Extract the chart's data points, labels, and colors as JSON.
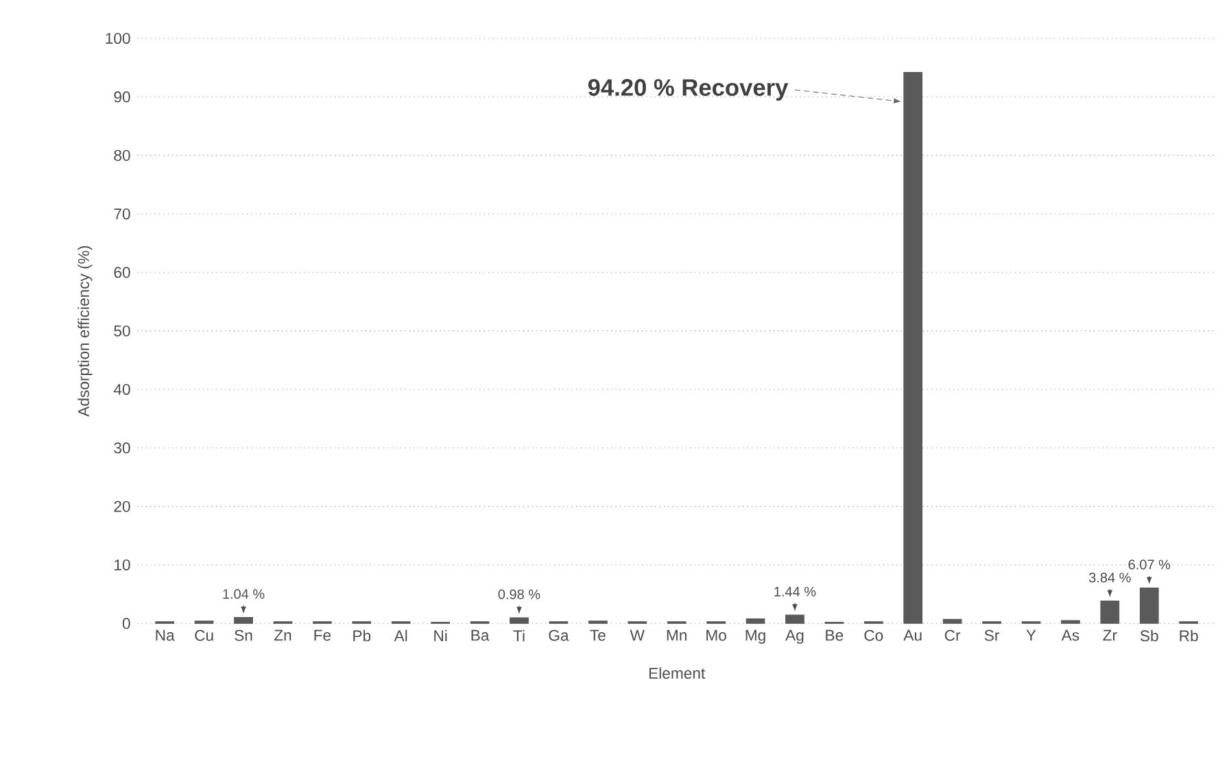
{
  "chart_data": {
    "type": "bar",
    "xlabel": "Element",
    "ylabel": "Adsorption efficiency (%)",
    "categories": [
      "Na",
      "Cu",
      "Sn",
      "Zn",
      "Fe",
      "Pb",
      "Al",
      "Ni",
      "Ba",
      "Ti",
      "Ga",
      "Te",
      "W",
      "Mn",
      "Mo",
      "Mg",
      "Ag",
      "Be",
      "Co",
      "Au",
      "Cr",
      "Sr",
      "Y",
      "As",
      "Zr",
      "Sb",
      "Rb"
    ],
    "values": [
      0.3,
      0.4,
      1.04,
      0.3,
      0.3,
      0.3,
      0.3,
      0.2,
      0.3,
      0.98,
      0.3,
      0.4,
      0.3,
      0.3,
      0.3,
      0.8,
      1.44,
      0.2,
      0.3,
      94.2,
      0.7,
      0.3,
      0.3,
      0.5,
      3.84,
      6.07,
      0.3
    ],
    "value_labels": [
      null,
      null,
      "1.04 %",
      null,
      null,
      null,
      null,
      null,
      null,
      "0.98 %",
      null,
      null,
      null,
      null,
      null,
      null,
      "1.44 %",
      null,
      null,
      "94.20 % Recovery",
      null,
      null,
      null,
      null,
      "3.84 %",
      "6.07 %",
      null
    ],
    "color": "#5a5a5a",
    "ylim": [
      0,
      100
    ],
    "yticks": [
      0,
      10,
      20,
      30,
      40,
      50,
      60,
      70,
      80,
      90,
      100
    ],
    "grid": "y"
  }
}
